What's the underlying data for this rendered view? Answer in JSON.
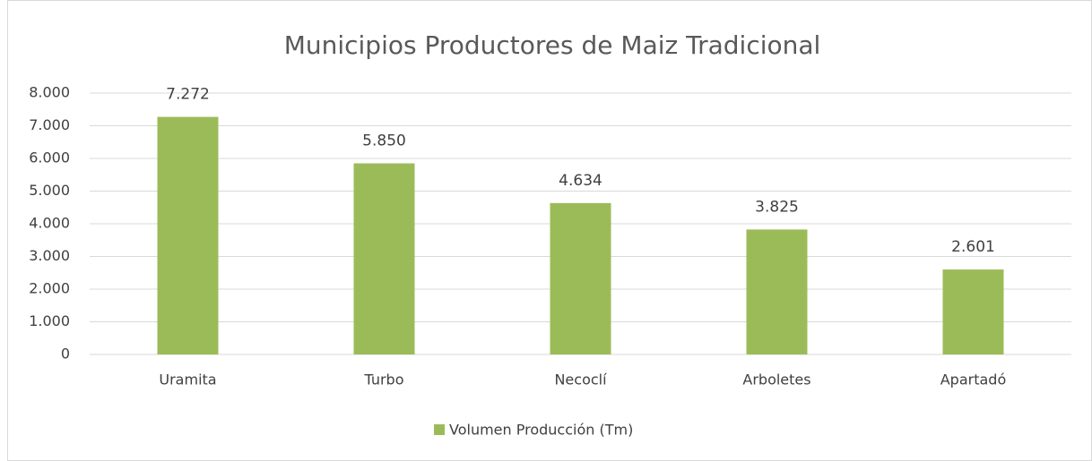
{
  "chart_data": {
    "type": "bar",
    "title": "Municipios Productores de Maiz Tradicional",
    "categories": [
      "Uramita",
      "Turbo",
      "Necoclí",
      "Arboletes",
      "Apartadó"
    ],
    "series": [
      {
        "name": "Volumen Producción (Tm)",
        "color": "#9bbb59",
        "values": [
          7272,
          5850,
          4634,
          3825,
          2601
        ],
        "value_labels": [
          "7.272",
          "5.850",
          "4.634",
          "3.825",
          "2.601"
        ]
      }
    ],
    "ylim": [
      0,
      8000
    ],
    "yticks": [
      0,
      {
        "value": 1000,
        "label": "1.000"
      },
      {
        "value": 2000,
        "label": "2.000"
      },
      {
        "value": 3000,
        "label": "3.000"
      },
      {
        "value": 4000,
        "label": "4.000"
      },
      {
        "value": 5000,
        "label": "5.000"
      },
      {
        "value": 6000,
        "label": "6.000"
      },
      {
        "value": 7000,
        "label": "7.000"
      },
      {
        "value": 8000,
        "label": "8.000"
      }
    ],
    "grid": true,
    "legend": "bottom"
  }
}
